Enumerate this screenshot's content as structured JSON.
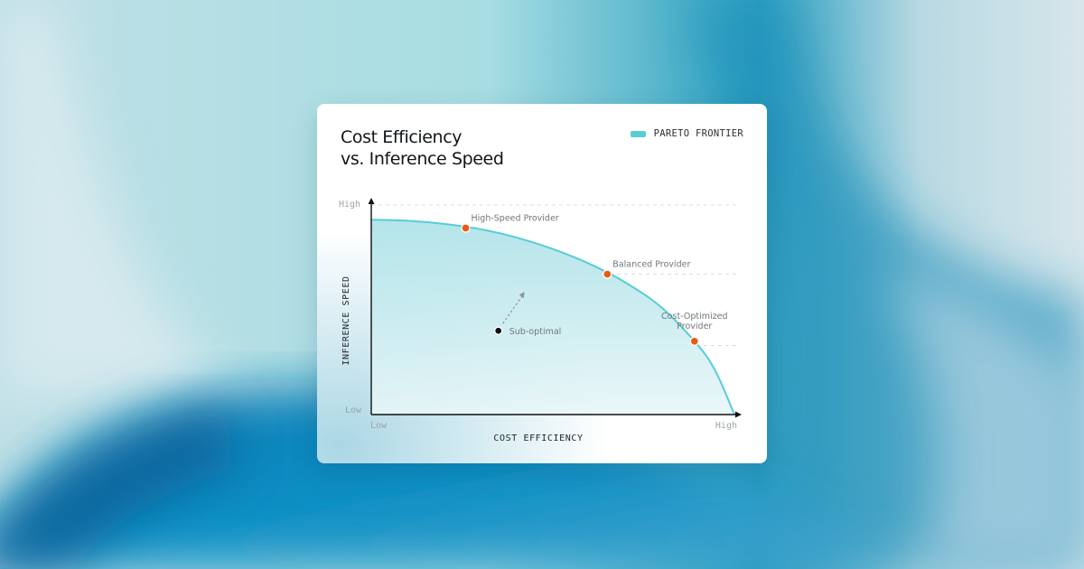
{
  "colors": {
    "frontier": "#57cdd6",
    "frontier_fill": "#bfe7ec",
    "point": "#ea5a12",
    "suboptimal_point": "#111111",
    "arrow": "#8d969b",
    "gridline": "#d9dde0"
  },
  "chart_data": {
    "type": "area",
    "title_line1": "Cost Efficiency",
    "title_line2": "vs. Inference Speed",
    "legend": "PARETO FRONTIER",
    "xlabel": "COST EFFICIENCY",
    "ylabel": "INFERENCE SPEED",
    "x_ticks": [
      "Low",
      "High"
    ],
    "y_ticks": [
      "Low",
      "High"
    ],
    "xlim": [
      0,
      1
    ],
    "ylim": [
      0,
      1
    ],
    "grid": "horizontal dashed",
    "legend_position": "top-right",
    "frontier": {
      "name": "PARETO FRONTIER",
      "x": [
        0,
        0.1,
        0.2,
        0.3,
        0.4,
        0.5,
        0.6,
        0.7,
        0.8,
        0.9,
        0.95,
        1.0
      ],
      "y": [
        0.93,
        0.925,
        0.91,
        0.885,
        0.845,
        0.79,
        0.72,
        0.63,
        0.51,
        0.33,
        0.2,
        0.0
      ]
    },
    "points": [
      {
        "label": "High-Speed Provider",
        "x": 0.26,
        "y": 0.89,
        "on_frontier": true
      },
      {
        "label": "Balanced Provider",
        "x": 0.65,
        "y": 0.67,
        "on_frontier": true
      },
      {
        "label": "Cost-Optimized Provider",
        "x": 0.89,
        "y": 0.35,
        "on_frontier": true
      },
      {
        "label": "Sub-optimal",
        "x": 0.35,
        "y": 0.4,
        "on_frontier": false
      }
    ]
  }
}
